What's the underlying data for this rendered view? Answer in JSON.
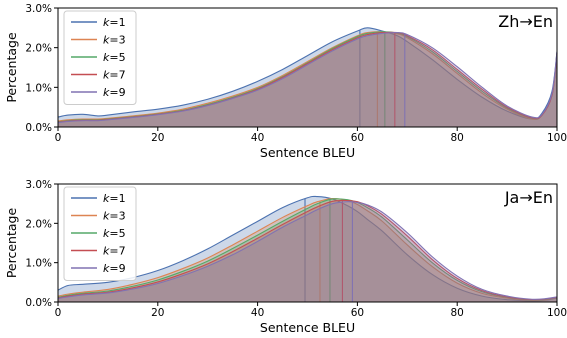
{
  "chart_data": [
    {
      "type": "area",
      "title": "Zh→En",
      "xlabel": "Sentence BLEU",
      "ylabel": "Percentage",
      "xlim": [
        0,
        100
      ],
      "ylim": [
        0,
        3.0
      ],
      "x_ticks": [
        "0",
        "20",
        "40",
        "60",
        "80",
        "100"
      ],
      "y_ticks": [
        "0.0%",
        "1.0%",
        "2.0%",
        "3.0%"
      ],
      "legend_position": "top-left",
      "x": [
        0,
        2,
        5,
        8,
        10,
        15,
        20,
        25,
        30,
        35,
        40,
        45,
        50,
        55,
        60,
        62,
        65,
        68,
        70,
        75,
        80,
        85,
        90,
        95,
        97,
        99,
        100
      ],
      "series": [
        {
          "name": "k=1",
          "color": "#4c72b0",
          "mean": 60.5,
          "values": [
            0.25,
            0.3,
            0.32,
            0.28,
            0.3,
            0.38,
            0.45,
            0.55,
            0.7,
            0.9,
            1.15,
            1.45,
            1.8,
            2.15,
            2.42,
            2.5,
            2.42,
            2.3,
            2.15,
            1.7,
            1.2,
            0.75,
            0.4,
            0.2,
            0.35,
            0.9,
            1.9
          ]
        },
        {
          "name": "k=3",
          "color": "#dd8452",
          "mean": 64.0,
          "values": [
            0.15,
            0.18,
            0.2,
            0.2,
            0.22,
            0.28,
            0.35,
            0.45,
            0.6,
            0.78,
            1.0,
            1.3,
            1.65,
            2.0,
            2.3,
            2.38,
            2.4,
            2.35,
            2.25,
            1.85,
            1.35,
            0.85,
            0.45,
            0.2,
            0.3,
            0.8,
            1.85
          ]
        },
        {
          "name": "k=5",
          "color": "#55a868",
          "mean": 65.5,
          "values": [
            0.13,
            0.16,
            0.18,
            0.18,
            0.2,
            0.26,
            0.33,
            0.42,
            0.57,
            0.75,
            0.97,
            1.27,
            1.62,
            1.98,
            2.28,
            2.36,
            2.4,
            2.37,
            2.28,
            1.9,
            1.4,
            0.9,
            0.48,
            0.22,
            0.3,
            0.8,
            1.85
          ]
        },
        {
          "name": "k=7",
          "color": "#c44e52",
          "mean": 67.5,
          "values": [
            0.12,
            0.15,
            0.17,
            0.17,
            0.19,
            0.25,
            0.32,
            0.41,
            0.55,
            0.73,
            0.95,
            1.25,
            1.6,
            1.95,
            2.25,
            2.33,
            2.38,
            2.38,
            2.3,
            1.95,
            1.45,
            0.95,
            0.5,
            0.23,
            0.3,
            0.8,
            1.85
          ]
        },
        {
          "name": "k=9",
          "color": "#8172b2",
          "mean": 69.5,
          "values": [
            0.11,
            0.14,
            0.16,
            0.16,
            0.18,
            0.24,
            0.31,
            0.4,
            0.54,
            0.72,
            0.93,
            1.22,
            1.57,
            1.92,
            2.22,
            2.3,
            2.36,
            2.38,
            2.33,
            2.0,
            1.52,
            1.0,
            0.53,
            0.25,
            0.32,
            0.85,
            1.9
          ]
        }
      ]
    },
    {
      "type": "area",
      "title": "Ja→En",
      "xlabel": "Sentence BLEU",
      "ylabel": "Percentage",
      "xlim": [
        0,
        100
      ],
      "ylim": [
        0,
        3.0
      ],
      "x_ticks": [
        "0",
        "20",
        "40",
        "60",
        "80",
        "100"
      ],
      "y_ticks": [
        "0.0%",
        "1.0%",
        "2.0%",
        "3.0%"
      ],
      "legend_position": "top-left",
      "x": [
        0,
        2,
        5,
        10,
        15,
        20,
        25,
        30,
        35,
        40,
        45,
        50,
        52,
        55,
        58,
        60,
        62,
        65,
        70,
        75,
        80,
        85,
        90,
        95,
        98,
        100
      ],
      "series": [
        {
          "name": "k=1",
          "color": "#4c72b0",
          "mean": 49.5,
          "values": [
            0.3,
            0.42,
            0.45,
            0.5,
            0.62,
            0.8,
            1.05,
            1.35,
            1.7,
            2.05,
            2.4,
            2.65,
            2.68,
            2.62,
            2.45,
            2.3,
            2.1,
            1.8,
            1.2,
            0.7,
            0.35,
            0.15,
            0.06,
            0.03,
            0.05,
            0.1
          ]
        },
        {
          "name": "k=3",
          "color": "#dd8452",
          "mean": 52.5,
          "values": [
            0.15,
            0.2,
            0.25,
            0.32,
            0.45,
            0.62,
            0.85,
            1.12,
            1.45,
            1.8,
            2.15,
            2.45,
            2.55,
            2.63,
            2.58,
            2.48,
            2.32,
            2.05,
            1.45,
            0.9,
            0.48,
            0.22,
            0.1,
            0.04,
            0.06,
            0.12
          ]
        },
        {
          "name": "k=5",
          "color": "#55a868",
          "mean": 54.5,
          "values": [
            0.12,
            0.17,
            0.22,
            0.28,
            0.4,
            0.56,
            0.78,
            1.04,
            1.36,
            1.7,
            2.05,
            2.38,
            2.5,
            2.62,
            2.6,
            2.53,
            2.4,
            2.15,
            1.58,
            1.0,
            0.55,
            0.26,
            0.12,
            0.05,
            0.07,
            0.12
          ]
        },
        {
          "name": "k=7",
          "color": "#c44e52",
          "mean": 57.0,
          "values": [
            0.1,
            0.15,
            0.2,
            0.25,
            0.36,
            0.51,
            0.72,
            0.97,
            1.28,
            1.62,
            1.97,
            2.3,
            2.42,
            2.56,
            2.58,
            2.55,
            2.45,
            2.22,
            1.68,
            1.08,
            0.6,
            0.29,
            0.13,
            0.06,
            0.08,
            0.12
          ]
        },
        {
          "name": "k=9",
          "color": "#8172b2",
          "mean": 59.0,
          "values": [
            0.09,
            0.13,
            0.18,
            0.23,
            0.33,
            0.47,
            0.67,
            0.91,
            1.2,
            1.54,
            1.9,
            2.22,
            2.35,
            2.5,
            2.55,
            2.53,
            2.47,
            2.28,
            1.76,
            1.15,
            0.66,
            0.32,
            0.15,
            0.07,
            0.09,
            0.13
          ]
        }
      ]
    }
  ]
}
